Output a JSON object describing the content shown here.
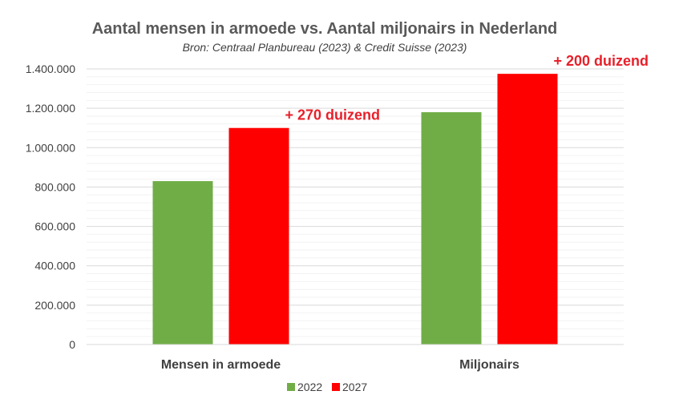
{
  "chart_data": {
    "type": "bar",
    "title": "Aantal mensen in armoede vs. Aantal miljonairs in Nederland",
    "subtitle": "Bron: Centraal Planbureau (2023) & Credit Suisse (2023)",
    "categories": [
      "Mensen in armoede",
      "Miljonairs"
    ],
    "series": [
      {
        "name": "2022",
        "color": "#70AD47",
        "values": [
          830000,
          1180000
        ]
      },
      {
        "name": "2027",
        "color": "#FF0000",
        "values": [
          1100000,
          1375000
        ]
      }
    ],
    "ylim": [
      0,
      1400000
    ],
    "y_ticks": [
      0,
      200000,
      400000,
      600000,
      800000,
      1000000,
      1200000,
      1400000
    ],
    "y_tick_labels": [
      "0",
      "200.000",
      "400.000",
      "600.000",
      "800.000",
      "1.000.000",
      "1.200.000",
      "1.400.000"
    ],
    "annotations": [
      {
        "text": "+ 270 duizend",
        "category": "Mensen in armoede",
        "color": "#E8202A"
      },
      {
        "text": "+ 200 duizend",
        "category": "Miljonairs",
        "color": "#E8202A"
      }
    ],
    "grid": true,
    "legend_position": "bottom"
  }
}
